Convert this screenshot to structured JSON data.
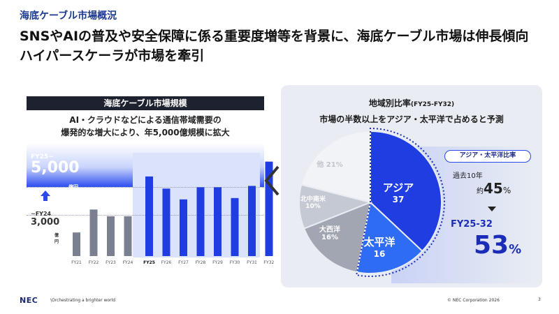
{
  "section_label": "海底ケーブル市場概況",
  "headline": "SNSやAIの普及や安全保障に係る重要度増等を背景に、海底ケーブル市場は伸長傾向\nハイパースケーラが市場を牽引",
  "left": {
    "title": "海底ケーブル市場規模",
    "subtitle": "AI・クラウドなどによる通信帯域需要の\n爆発的な増大により、年5,000億規模に拡大",
    "future_label": "FY25~",
    "future_amount": "5,000",
    "future_unit": "億円",
    "past_label": "~FY24",
    "past_amount": "3,000",
    "past_unit": "億円"
  },
  "chart_data": {
    "type": "bar",
    "categories": [
      "FY21",
      "FY22",
      "FY23",
      "FY24",
      "FY25",
      "FY26",
      "FY27",
      "FY28",
      "FY29",
      "FY30",
      "FY31",
      "FY32"
    ],
    "values": [
      1750,
      3450,
      2950,
      2950,
      5900,
      5000,
      4200,
      5100,
      5100,
      4300,
      5200,
      7000
    ],
    "highlight_from": "FY25",
    "past_level": 3000,
    "future_level": 5000,
    "ylim": [
      0,
      7600
    ],
    "colors": {
      "past": "#7a8090",
      "future": "#1f3de0"
    }
  },
  "right": {
    "title": "地域別比率",
    "title_paren": "(FY25-FY32)",
    "subtitle": "市場の半数以上をアジア・太平洋で占めると予測",
    "pie": [
      {
        "name": "アジア",
        "value": 37,
        "label": "37",
        "color": "#1f3de0"
      },
      {
        "name": "太平洋",
        "value": 16,
        "label": "16",
        "color": "#2f6cf5"
      },
      {
        "name": "大西洋",
        "value": 16,
        "label": "16%",
        "color": "#a2a6b2"
      },
      {
        "name": "北中南米",
        "value": 10,
        "label": "10%",
        "color": "#c5c9d3"
      },
      {
        "name": "他",
        "value": 21,
        "label": "21%",
        "color": "#f2f3f6"
      }
    ],
    "apac_badge": "アジア・太平洋比率",
    "past_label": "過去10年",
    "past_prefix": "約",
    "past_pct": "45",
    "pct_sign": "%",
    "future_label": "FY25-32",
    "future_pct": "53"
  },
  "footer": {
    "logo": "NEC",
    "tagline": "\\Orchestrating a brighter world",
    "copyright": "© NEC Corporation 2026",
    "page": "3"
  }
}
